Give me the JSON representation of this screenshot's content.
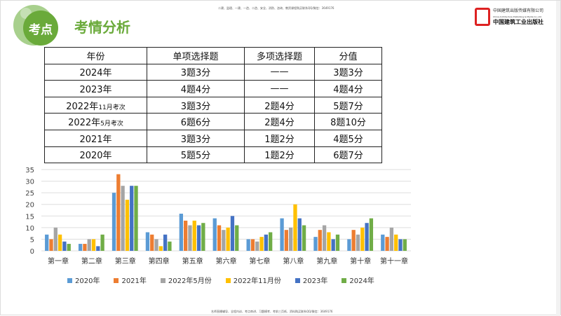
{
  "top_note": "二建、监理、一建、一造、二造、安全、消防、咨询、教资课程购买联系QQ/微信：3649176",
  "bottom_note": "名师直播辅导、全程内训、考点串讲、习题模考、考前三页纸、资料购买联系QQ/微信：3649176",
  "badge": "考点",
  "title": "考情分析",
  "logo": {
    "line1": "中国建筑出版传媒有限公司",
    "line2": "China Architecture Publishing & Media Co.,Ltd",
    "line3": "中国建筑工业出版社"
  },
  "table": {
    "headers": [
      "年份",
      "单项选择题",
      "多项选择题",
      "分值"
    ],
    "rows": [
      {
        "year": "2024年",
        "sub": "",
        "single": "3题3分",
        "multi": "——",
        "score": "3题3分"
      },
      {
        "year": "2023年",
        "sub": "",
        "single": "4题4分",
        "multi": "——",
        "score": "4题4分"
      },
      {
        "year": "2022年",
        "sub": "11月考次",
        "single": "3题3分",
        "multi": "2题4分",
        "score": "5题7分"
      },
      {
        "year": "2022年",
        "sub": "5月考次",
        "single": "6题6分",
        "multi": "2题4分",
        "score": "8题10分"
      },
      {
        "year": "2021年",
        "sub": "",
        "single": "3题3分",
        "multi": "1题2分",
        "score": "4题5分"
      },
      {
        "year": "2020年",
        "sub": "",
        "single": "5题5分",
        "multi": "1题2分",
        "score": "6题7分"
      }
    ]
  },
  "chart_data": {
    "type": "bar",
    "ylim": [
      0,
      35
    ],
    "yticks": [
      0,
      5,
      10,
      15,
      20,
      25,
      30,
      35
    ],
    "grid": true,
    "legend": "bottom",
    "categories": [
      "第一章",
      "第二章",
      "第三章",
      "第四章",
      "第五章",
      "第六章",
      "第七章",
      "第八章",
      "第九章",
      "第十章",
      "第十一章"
    ],
    "series": [
      {
        "name": "2020年",
        "color": "#5b9bd5",
        "values": [
          7,
          3,
          25,
          8,
          16,
          14,
          5,
          14,
          6,
          5,
          7
        ]
      },
      {
        "name": "2021年",
        "color": "#ed7d31",
        "values": [
          5,
          3,
          33,
          7,
          13,
          11,
          5,
          9,
          9,
          9,
          6
        ]
      },
      {
        "name": "2022年5月份",
        "color": "#a5a5a5",
        "values": [
          10,
          5,
          28,
          5,
          11,
          9,
          4,
          10,
          11,
          7,
          10
        ]
      },
      {
        "name": "2022年11月份",
        "color": "#ffc000",
        "values": [
          7,
          5,
          22,
          2,
          13,
          10,
          6,
          20,
          8,
          10,
          7
        ]
      },
      {
        "name": "2023年",
        "color": "#4472c4",
        "values": [
          4,
          2,
          28,
          7,
          11,
          15,
          7,
          14,
          5,
          12,
          5
        ]
      },
      {
        "name": "2024年",
        "color": "#70ad47",
        "values": [
          3,
          7,
          28,
          4,
          12,
          11,
          8,
          11,
          7,
          14,
          5
        ]
      }
    ]
  }
}
